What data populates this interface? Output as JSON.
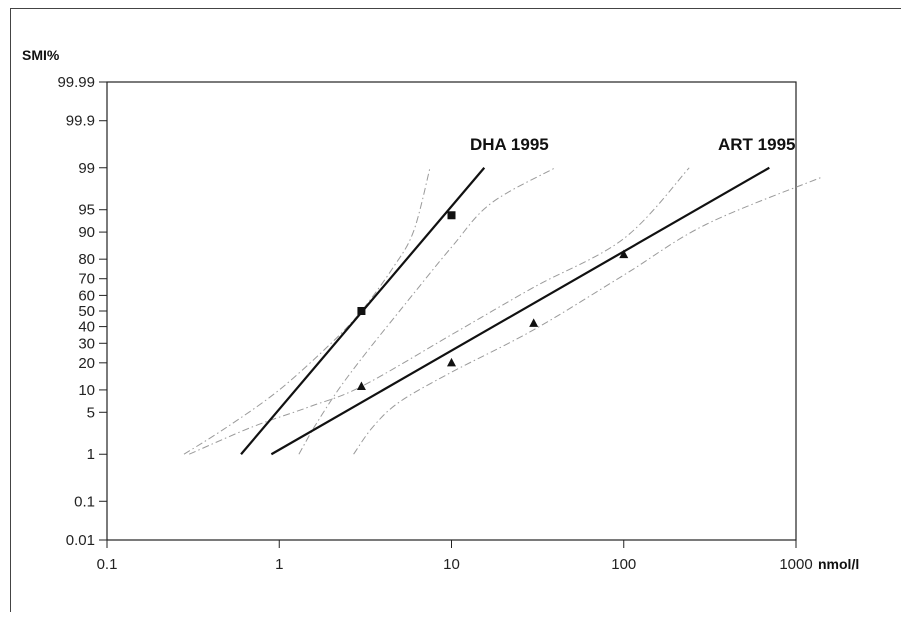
{
  "chart_data": {
    "type": "scatter",
    "title": "",
    "xlabel": "nmol/l",
    "ylabel": "SMI%",
    "x_scale": "log",
    "y_scale": "probit",
    "xlim": [
      0.1,
      1000
    ],
    "ylim": [
      0.01,
      99.99
    ],
    "x_ticks": [
      {
        "value": 0.1,
        "label": "0.1"
      },
      {
        "value": 1,
        "label": "1"
      },
      {
        "value": 10,
        "label": "10"
      },
      {
        "value": 100,
        "label": "100"
      },
      {
        "value": 1000,
        "label": "1000"
      }
    ],
    "y_ticks": [
      {
        "value": 0.01,
        "label": "0.01"
      },
      {
        "value": 0.1,
        "label": "0.1"
      },
      {
        "value": 1,
        "label": "1"
      },
      {
        "value": 5,
        "label": "5"
      },
      {
        "value": 10,
        "label": "10"
      },
      {
        "value": 20,
        "label": "20"
      },
      {
        "value": 30,
        "label": "30"
      },
      {
        "value": 40,
        "label": "40"
      },
      {
        "value": 50,
        "label": "50"
      },
      {
        "value": 60,
        "label": "60"
      },
      {
        "value": 70,
        "label": "70"
      },
      {
        "value": 80,
        "label": "80"
      },
      {
        "value": 90,
        "label": "90"
      },
      {
        "value": 95,
        "label": "95"
      },
      {
        "value": 99,
        "label": "99"
      },
      {
        "value": 99.9,
        "label": "99.9"
      },
      {
        "value": 99.99,
        "label": "99.99"
      }
    ],
    "grid": false,
    "series": [
      {
        "name": "DHA 1995",
        "marker": "square",
        "color": "#111111",
        "points": [
          {
            "x": 3,
            "y": 50
          },
          {
            "x": 10,
            "y": 94
          }
        ],
        "fit_line": [
          {
            "x": 0.6,
            "y": 1
          },
          {
            "x": 15.5,
            "y": 99
          }
        ],
        "ci_upper": [
          {
            "x": 0.28,
            "y": 1
          },
          {
            "x": 0.5,
            "y": 3
          },
          {
            "x": 1,
            "y": 10
          },
          {
            "x": 2,
            "y": 30
          },
          {
            "x": 3,
            "y": 50
          },
          {
            "x": 4.5,
            "y": 75
          },
          {
            "x": 6,
            "y": 90
          },
          {
            "x": 7.5,
            "y": 99
          }
        ],
        "ci_lower": [
          {
            "x": 1.3,
            "y": 1
          },
          {
            "x": 1.6,
            "y": 3
          },
          {
            "x": 2.2,
            "y": 10
          },
          {
            "x": 3.2,
            "y": 25
          },
          {
            "x": 5,
            "y": 50
          },
          {
            "x": 10,
            "y": 85
          },
          {
            "x": 17,
            "y": 96
          },
          {
            "x": 40,
            "y": 99
          }
        ]
      },
      {
        "name": "ART 1995",
        "marker": "triangle",
        "color": "#111111",
        "points": [
          {
            "x": 3,
            "y": 11
          },
          {
            "x": 10,
            "y": 20
          },
          {
            "x": 30,
            "y": 42
          },
          {
            "x": 100,
            "y": 82
          }
        ],
        "fit_line": [
          {
            "x": 0.9,
            "y": 1
          },
          {
            "x": 700,
            "y": 99
          }
        ],
        "ci_upper": [
          {
            "x": 0.3,
            "y": 1
          },
          {
            "x": 0.7,
            "y": 3
          },
          {
            "x": 1.5,
            "y": 6
          },
          {
            "x": 3,
            "y": 11
          },
          {
            "x": 10,
            "y": 35
          },
          {
            "x": 30,
            "y": 65
          },
          {
            "x": 100,
            "y": 88
          },
          {
            "x": 240,
            "y": 99
          }
        ]
      },
      {
        "name": "",
        "marker": "none",
        "color": "#111111",
        "points": [],
        "fit_line": [],
        "ci_upper": [
          {
            "x": 2.7,
            "y": 1
          },
          {
            "x": 3.5,
            "y": 3
          },
          {
            "x": 5,
            "y": 7
          },
          {
            "x": 10,
            "y": 16
          },
          {
            "x": 30,
            "y": 38
          },
          {
            "x": 100,
            "y": 72
          },
          {
            "x": 300,
            "y": 92
          },
          {
            "x": 1400,
            "y": 98.5
          }
        ]
      }
    ]
  }
}
